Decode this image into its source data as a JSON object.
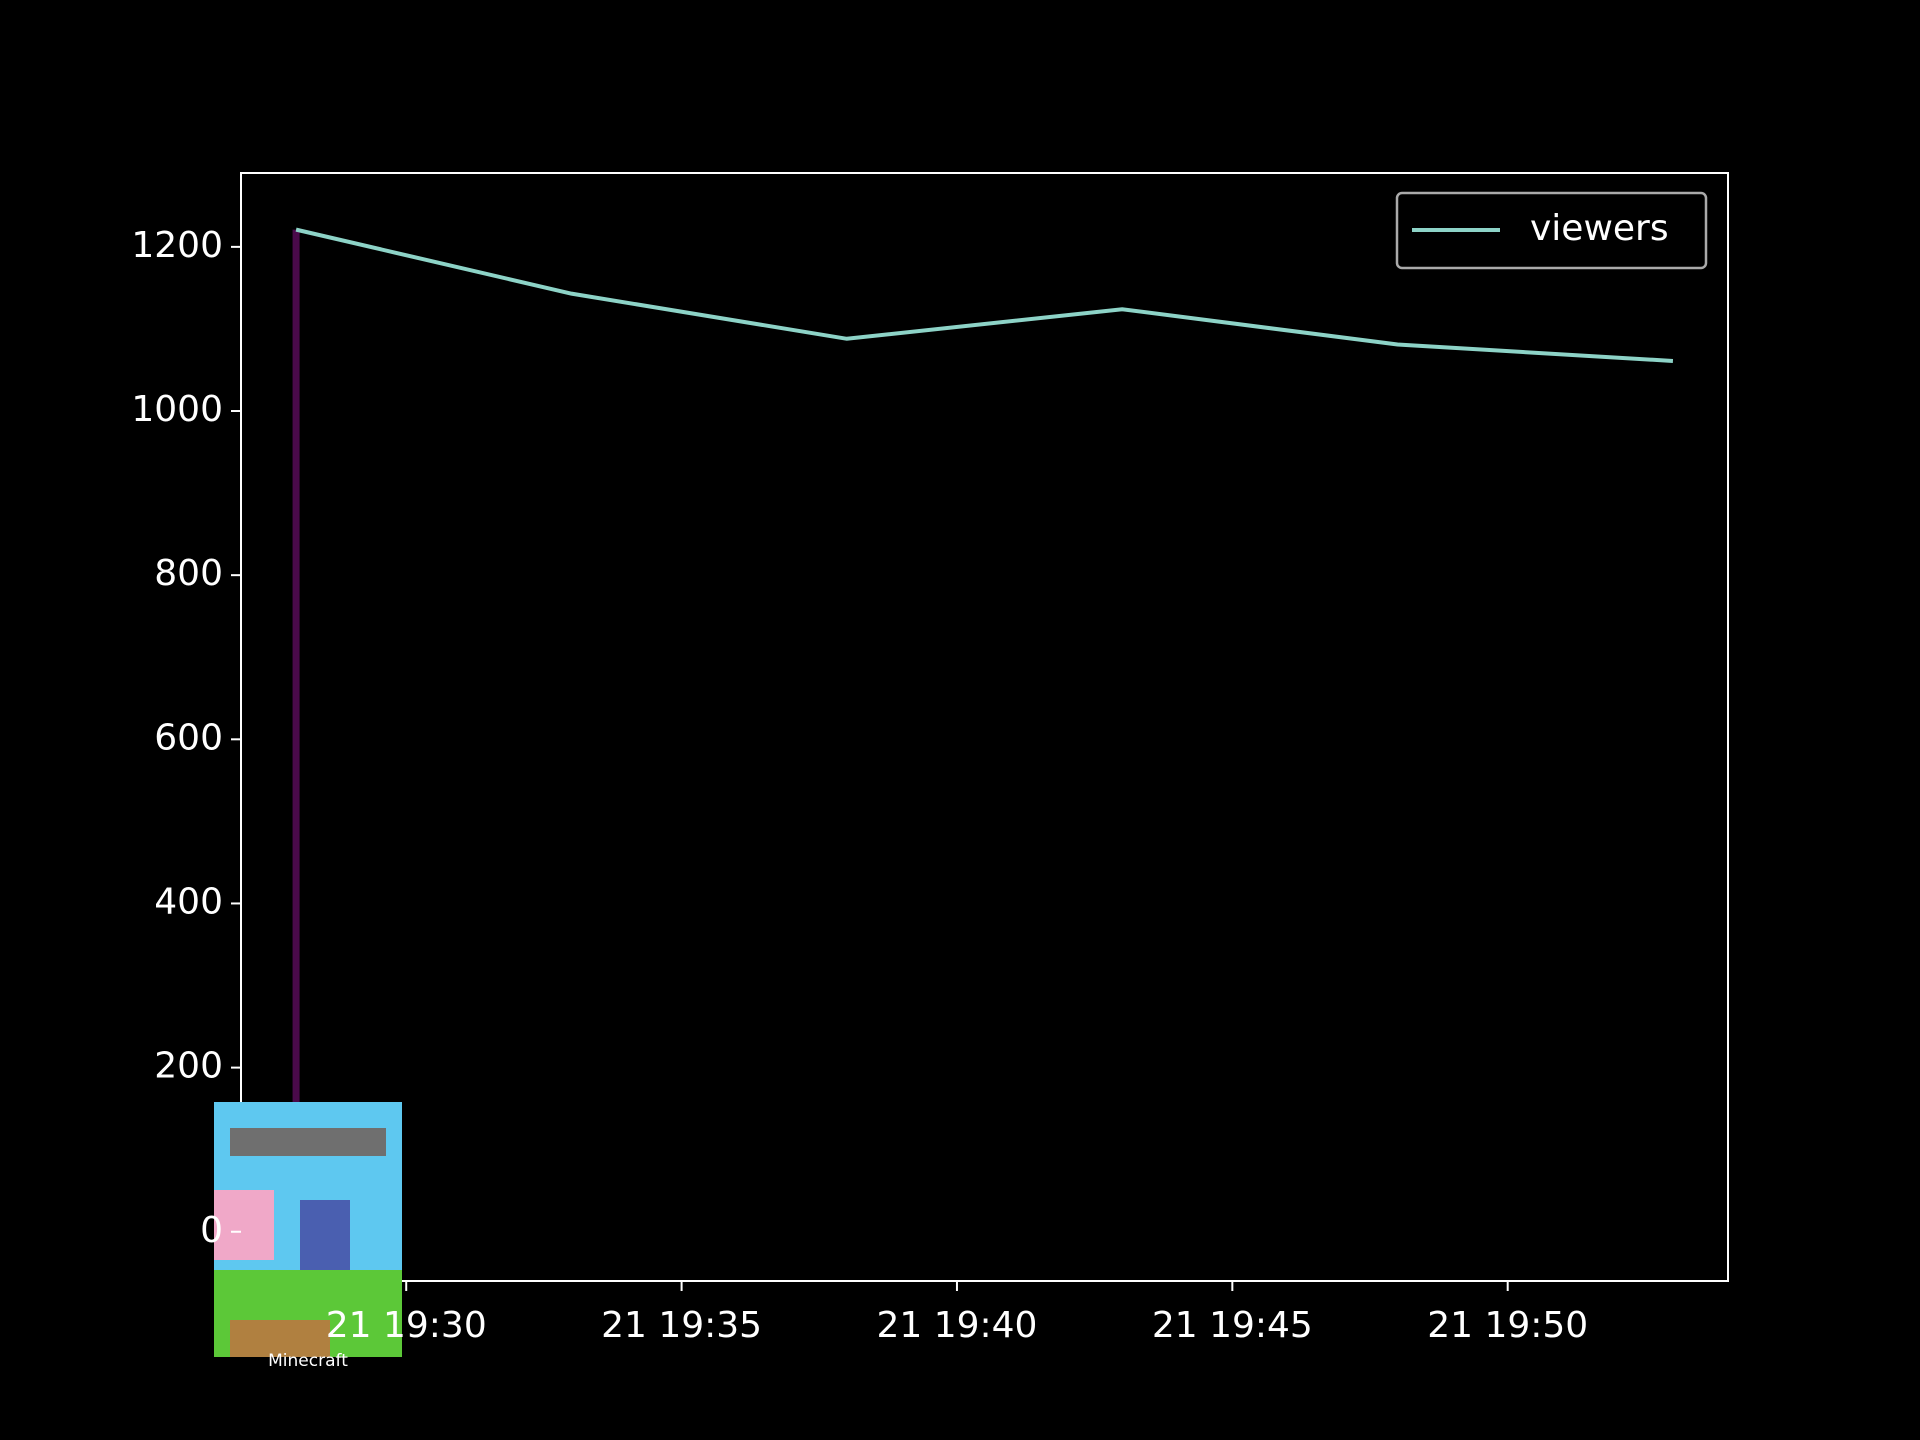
{
  "chart_data": {
    "type": "line",
    "x": [
      "21 19:28",
      "21 19:33",
      "21 19:38",
      "21 19:43",
      "21 19:48",
      "21 19:53"
    ],
    "series": [
      {
        "name": "viewers",
        "color": "#8dd3c7",
        "values": [
          1221,
          1143,
          1088,
          1124,
          1081,
          1061
        ]
      }
    ],
    "xlim": [
      "21 19:27",
      "21 19:54"
    ],
    "xticks": [
      "21 19:30",
      "21 19:35",
      "21 19:40",
      "21 19:45",
      "21 19:50"
    ],
    "ylim": [
      -60,
      1290
    ],
    "yticks": [
      0,
      200,
      400,
      600,
      800,
      1000,
      1200
    ],
    "legend": "upper right",
    "markers": [
      {
        "x": "21 19:28",
        "label": "Minecraft",
        "color": "#4a0a4a",
        "ymin": 0,
        "ymax": 1221
      }
    ]
  }
}
